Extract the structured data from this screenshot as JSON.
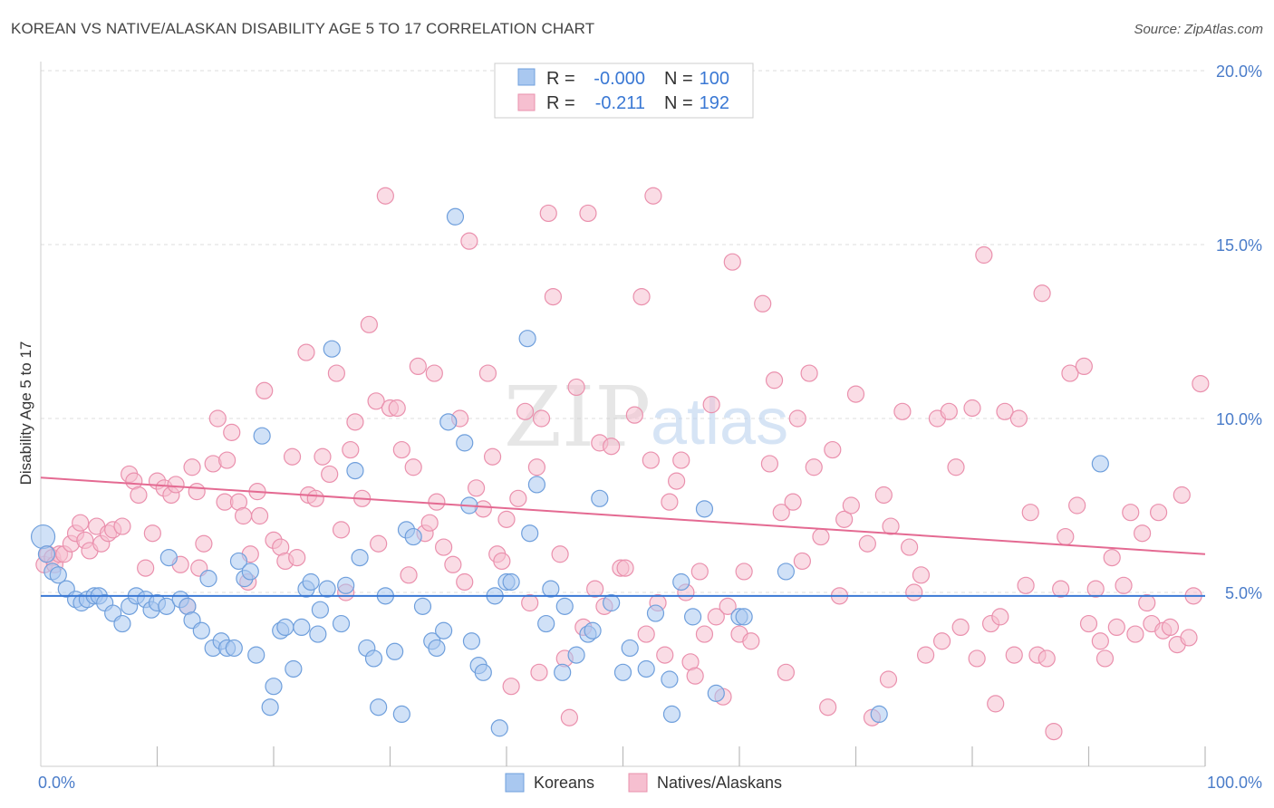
{
  "title": "KOREAN VS NATIVE/ALASKAN DISABILITY AGE 5 TO 17 CORRELATION CHART",
  "source": "Source: ZipAtlas.com",
  "watermark": {
    "zip": "ZIP",
    "atlas": "atlas"
  },
  "colors": {
    "korean_fill": "#a9c8f0",
    "korean_stroke": "#6f9fdc",
    "korean_line": "#3a78d4",
    "native_fill": "#f6bfd0",
    "native_stroke": "#ea90ad",
    "native_line": "#e46a92",
    "tick_text": "#4a7cc9",
    "grid": "#dddddd"
  },
  "legend": {
    "rows": [
      {
        "r_label": "R =",
        "r_value": "-0.000",
        "n_label": "N =",
        "n_value": "100"
      },
      {
        "r_label": "R =",
        "r_value": "-0.211",
        "n_label": "N =",
        "n_value": "192"
      }
    ]
  },
  "chart_data": {
    "type": "scatter",
    "xlabel": "",
    "ylabel": "Disability Age 5 to 17",
    "xlim": [
      0,
      100
    ],
    "ylim": [
      0,
      20
    ],
    "x_tick_labels": [
      "0.0%",
      "100.0%"
    ],
    "y_ticks": [
      5,
      10,
      15,
      20
    ],
    "y_tick_labels": [
      "5.0%",
      "10.0%",
      "15.0%",
      "20.0%"
    ],
    "grid": true,
    "legend_position": "top-center",
    "series": [
      {
        "name": "Koreans",
        "trend": [
          [
            0,
            4.9
          ],
          [
            100,
            4.9
          ]
        ],
        "points": [
          [
            0.2,
            6.6
          ],
          [
            0.5,
            6.1
          ],
          [
            1.0,
            5.6
          ],
          [
            1.5,
            5.5
          ],
          [
            2.2,
            5.1
          ],
          [
            3.0,
            4.8
          ],
          [
            3.5,
            4.7
          ],
          [
            4.0,
            4.8
          ],
          [
            4.6,
            4.9
          ],
          [
            5.0,
            4.9
          ],
          [
            5.5,
            4.7
          ],
          [
            6.2,
            4.4
          ],
          [
            7.0,
            4.1
          ],
          [
            7.6,
            4.6
          ],
          [
            8.2,
            4.9
          ],
          [
            9.0,
            4.8
          ],
          [
            9.5,
            4.5
          ],
          [
            10.0,
            4.7
          ],
          [
            10.8,
            4.6
          ],
          [
            11.0,
            6.0
          ],
          [
            12.0,
            4.8
          ],
          [
            12.6,
            4.6
          ],
          [
            13.0,
            4.2
          ],
          [
            13.8,
            3.9
          ],
          [
            14.4,
            5.4
          ],
          [
            14.8,
            3.4
          ],
          [
            15.5,
            3.6
          ],
          [
            16.0,
            3.4
          ],
          [
            16.6,
            3.4
          ],
          [
            17.0,
            5.9
          ],
          [
            17.5,
            5.4
          ],
          [
            18.0,
            5.6
          ],
          [
            18.5,
            3.2
          ],
          [
            19.0,
            9.5
          ],
          [
            19.7,
            1.7
          ],
          [
            20.0,
            2.3
          ],
          [
            20.6,
            3.9
          ],
          [
            21.0,
            4.0
          ],
          [
            21.7,
            2.8
          ],
          [
            22.4,
            4.0
          ],
          [
            22.8,
            5.1
          ],
          [
            23.2,
            5.3
          ],
          [
            23.8,
            3.8
          ],
          [
            24.0,
            4.5
          ],
          [
            24.6,
            5.1
          ],
          [
            25.0,
            12.0
          ],
          [
            25.8,
            4.1
          ],
          [
            26.2,
            5.2
          ],
          [
            27.0,
            8.5
          ],
          [
            27.4,
            6.0
          ],
          [
            28.0,
            3.4
          ],
          [
            28.6,
            3.1
          ],
          [
            29.0,
            1.7
          ],
          [
            29.6,
            4.9
          ],
          [
            30.4,
            3.3
          ],
          [
            31.0,
            1.5
          ],
          [
            31.4,
            6.8
          ],
          [
            32.0,
            6.6
          ],
          [
            32.8,
            4.6
          ],
          [
            33.6,
            3.6
          ],
          [
            34.0,
            3.4
          ],
          [
            34.6,
            3.9
          ],
          [
            35.0,
            9.9
          ],
          [
            35.6,
            15.8
          ],
          [
            36.4,
            9.3
          ],
          [
            36.8,
            7.5
          ],
          [
            37.0,
            3.6
          ],
          [
            37.6,
            2.9
          ],
          [
            38.0,
            2.7
          ],
          [
            39.0,
            4.9
          ],
          [
            39.4,
            1.1
          ],
          [
            40.0,
            5.3
          ],
          [
            40.4,
            5.3
          ],
          [
            41.8,
            12.3
          ],
          [
            42.0,
            6.7
          ],
          [
            42.6,
            8.1
          ],
          [
            43.4,
            4.1
          ],
          [
            43.8,
            5.1
          ],
          [
            44.8,
            2.7
          ],
          [
            45.0,
            4.6
          ],
          [
            46.0,
            3.2
          ],
          [
            47.0,
            3.8
          ],
          [
            47.4,
            3.9
          ],
          [
            48.0,
            7.7
          ],
          [
            49.0,
            4.7
          ],
          [
            50.0,
            2.7
          ],
          [
            50.6,
            3.4
          ],
          [
            52.0,
            2.8
          ],
          [
            52.8,
            4.4
          ],
          [
            54.0,
            2.5
          ],
          [
            54.2,
            1.5
          ],
          [
            55.0,
            5.3
          ],
          [
            56.0,
            4.3
          ],
          [
            57.0,
            7.4
          ],
          [
            58.0,
            2.1
          ],
          [
            60.0,
            4.3
          ],
          [
            60.4,
            4.3
          ],
          [
            64.0,
            5.6
          ],
          [
            72.0,
            1.5
          ],
          [
            91.0,
            8.7
          ]
        ]
      },
      {
        "name": "Natives/Alaskans",
        "trend": [
          [
            0,
            8.3
          ],
          [
            100,
            6.1
          ]
        ],
        "points": [
          [
            0.3,
            5.8
          ],
          [
            0.6,
            6.1
          ],
          [
            1.0,
            6.0
          ],
          [
            1.2,
            5.8
          ],
          [
            1.6,
            6.1
          ],
          [
            2.0,
            6.1
          ],
          [
            2.6,
            6.4
          ],
          [
            3.0,
            6.7
          ],
          [
            3.4,
            7.0
          ],
          [
            3.8,
            6.5
          ],
          [
            4.2,
            6.2
          ],
          [
            4.8,
            6.9
          ],
          [
            5.2,
            6.4
          ],
          [
            5.8,
            6.7
          ],
          [
            6.2,
            6.8
          ],
          [
            7.0,
            6.9
          ],
          [
            7.6,
            8.4
          ],
          [
            8.0,
            8.2
          ],
          [
            8.4,
            7.8
          ],
          [
            9.0,
            5.7
          ],
          [
            9.6,
            6.7
          ],
          [
            10.0,
            8.2
          ],
          [
            10.6,
            8.0
          ],
          [
            11.2,
            7.8
          ],
          [
            11.6,
            8.1
          ],
          [
            12.0,
            5.8
          ],
          [
            12.6,
            4.6
          ],
          [
            13.0,
            8.6
          ],
          [
            13.4,
            7.9
          ],
          [
            13.6,
            5.7
          ],
          [
            14.0,
            6.4
          ],
          [
            14.8,
            8.7
          ],
          [
            15.2,
            10.0
          ],
          [
            15.8,
            7.6
          ],
          [
            16.0,
            8.8
          ],
          [
            16.4,
            9.6
          ],
          [
            17.0,
            7.6
          ],
          [
            17.4,
            7.2
          ],
          [
            17.8,
            5.3
          ],
          [
            18.0,
            6.1
          ],
          [
            18.6,
            7.9
          ],
          [
            18.8,
            7.2
          ],
          [
            19.2,
            10.8
          ],
          [
            20.0,
            6.5
          ],
          [
            20.6,
            6.3
          ],
          [
            21.0,
            5.9
          ],
          [
            21.6,
            8.9
          ],
          [
            22.0,
            6.0
          ],
          [
            22.8,
            11.9
          ],
          [
            23.0,
            7.8
          ],
          [
            23.6,
            7.7
          ],
          [
            24.2,
            8.9
          ],
          [
            24.8,
            8.4
          ],
          [
            25.4,
            11.3
          ],
          [
            25.8,
            6.8
          ],
          [
            26.2,
            5.0
          ],
          [
            26.6,
            9.1
          ],
          [
            27.0,
            9.9
          ],
          [
            27.6,
            7.7
          ],
          [
            28.2,
            12.7
          ],
          [
            28.8,
            10.5
          ],
          [
            29.0,
            6.4
          ],
          [
            29.6,
            16.4
          ],
          [
            30.0,
            10.3
          ],
          [
            30.6,
            10.3
          ],
          [
            31.0,
            9.1
          ],
          [
            31.6,
            5.5
          ],
          [
            32.0,
            8.6
          ],
          [
            32.4,
            11.5
          ],
          [
            33.0,
            6.7
          ],
          [
            33.4,
            7.0
          ],
          [
            33.8,
            11.3
          ],
          [
            34.0,
            7.6
          ],
          [
            34.6,
            6.3
          ],
          [
            35.4,
            5.8
          ],
          [
            36.0,
            10.0
          ],
          [
            36.4,
            5.3
          ],
          [
            36.8,
            15.1
          ],
          [
            37.4,
            8.0
          ],
          [
            38.0,
            7.4
          ],
          [
            38.4,
            11.3
          ],
          [
            38.8,
            8.9
          ],
          [
            39.2,
            6.1
          ],
          [
            39.6,
            5.9
          ],
          [
            40.0,
            7.1
          ],
          [
            40.4,
            2.3
          ],
          [
            41.0,
            7.7
          ],
          [
            41.6,
            10.2
          ],
          [
            42.0,
            4.7
          ],
          [
            42.6,
            8.6
          ],
          [
            42.8,
            2.7
          ],
          [
            43.0,
            10.0
          ],
          [
            43.6,
            15.9
          ],
          [
            44.0,
            13.5
          ],
          [
            44.6,
            6.1
          ],
          [
            45.0,
            3.1
          ],
          [
            45.4,
            1.4
          ],
          [
            46.0,
            10.9
          ],
          [
            46.6,
            4.0
          ],
          [
            47.0,
            15.9
          ],
          [
            47.6,
            5.1
          ],
          [
            48.0,
            9.3
          ],
          [
            48.4,
            4.6
          ],
          [
            49.0,
            9.2
          ],
          [
            49.8,
            5.7
          ],
          [
            50.2,
            5.7
          ],
          [
            51.0,
            10.1
          ],
          [
            51.6,
            13.5
          ],
          [
            52.0,
            3.8
          ],
          [
            52.4,
            8.8
          ],
          [
            52.6,
            16.4
          ],
          [
            53.0,
            4.7
          ],
          [
            53.6,
            3.2
          ],
          [
            54.0,
            7.6
          ],
          [
            54.6,
            8.2
          ],
          [
            55.0,
            8.8
          ],
          [
            55.4,
            5.0
          ],
          [
            55.8,
            3.0
          ],
          [
            56.2,
            2.6
          ],
          [
            56.6,
            5.6
          ],
          [
            57.0,
            3.8
          ],
          [
            57.6,
            10.4
          ],
          [
            58.0,
            4.3
          ],
          [
            58.6,
            2.0
          ],
          [
            59.0,
            4.6
          ],
          [
            59.4,
            14.5
          ],
          [
            60.0,
            3.8
          ],
          [
            60.4,
            5.6
          ],
          [
            61.0,
            3.6
          ],
          [
            62.0,
            13.3
          ],
          [
            62.6,
            8.7
          ],
          [
            63.0,
            11.1
          ],
          [
            63.6,
            7.3
          ],
          [
            64.0,
            2.7
          ],
          [
            64.6,
            7.6
          ],
          [
            65.0,
            10.0
          ],
          [
            65.4,
            5.9
          ],
          [
            66.0,
            11.3
          ],
          [
            66.4,
            8.6
          ],
          [
            67.0,
            6.6
          ],
          [
            67.6,
            1.7
          ],
          [
            68.0,
            9.1
          ],
          [
            68.6,
            4.9
          ],
          [
            69.0,
            7.1
          ],
          [
            69.6,
            7.5
          ],
          [
            70.0,
            10.7
          ],
          [
            71.0,
            6.4
          ],
          [
            71.4,
            1.4
          ],
          [
            72.4,
            7.8
          ],
          [
            72.8,
            2.5
          ],
          [
            73.0,
            6.9
          ],
          [
            74.0,
            10.2
          ],
          [
            74.6,
            6.3
          ],
          [
            75.0,
            5.0
          ],
          [
            75.6,
            5.5
          ],
          [
            76.0,
            3.2
          ],
          [
            77.0,
            10.0
          ],
          [
            77.4,
            3.6
          ],
          [
            78.0,
            10.2
          ],
          [
            78.6,
            8.6
          ],
          [
            79.0,
            4.0
          ],
          [
            80.0,
            10.3
          ],
          [
            80.4,
            3.1
          ],
          [
            81.0,
            14.7
          ],
          [
            81.6,
            4.1
          ],
          [
            82.0,
            1.8
          ],
          [
            82.4,
            4.3
          ],
          [
            82.8,
            10.2
          ],
          [
            83.6,
            3.2
          ],
          [
            84.0,
            10.0
          ],
          [
            84.6,
            5.2
          ],
          [
            85.0,
            7.3
          ],
          [
            85.6,
            3.2
          ],
          [
            86.0,
            13.6
          ],
          [
            86.4,
            3.1
          ],
          [
            87.0,
            1.0
          ],
          [
            87.6,
            5.1
          ],
          [
            88.0,
            6.6
          ],
          [
            88.4,
            11.3
          ],
          [
            89.0,
            7.5
          ],
          [
            89.6,
            11.5
          ],
          [
            90.0,
            4.1
          ],
          [
            90.6,
            5.1
          ],
          [
            91.0,
            3.6
          ],
          [
            91.4,
            3.1
          ],
          [
            92.0,
            6.0
          ],
          [
            92.4,
            4.0
          ],
          [
            93.0,
            5.2
          ],
          [
            93.6,
            7.3
          ],
          [
            94.0,
            3.8
          ],
          [
            94.6,
            6.7
          ],
          [
            95.0,
            4.7
          ],
          [
            95.4,
            4.1
          ],
          [
            96.0,
            7.3
          ],
          [
            96.4,
            3.9
          ],
          [
            97.0,
            4.0
          ],
          [
            97.6,
            3.5
          ],
          [
            98.0,
            7.8
          ],
          [
            98.6,
            3.7
          ],
          [
            99.0,
            4.9
          ],
          [
            99.6,
            11.0
          ]
        ]
      }
    ]
  }
}
